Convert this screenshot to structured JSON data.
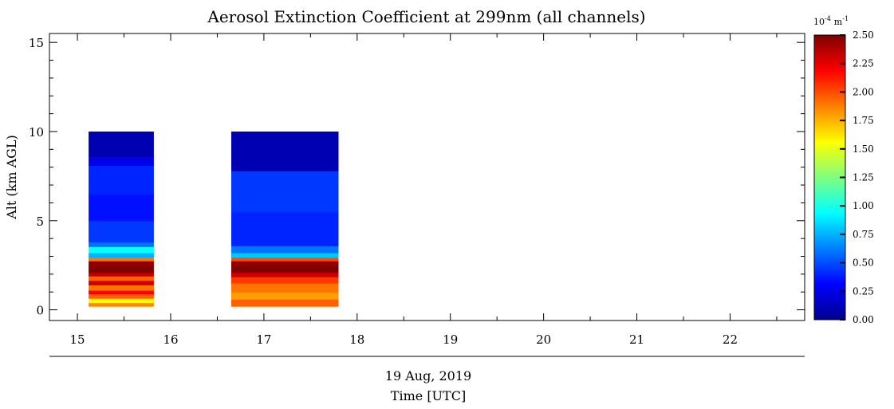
{
  "chart_data": {
    "type": "heatmap",
    "title": "Aerosol Extinction Coefficient at 299nm (all channels)",
    "ylabel": "Alt (km AGL)",
    "xlabel_date": "19 Aug, 2019",
    "xlabel": "Time [UTC]",
    "xlim": [
      14.7,
      22.8
    ],
    "ylim": [
      -0.6,
      15.5
    ],
    "xticks": [
      15,
      16,
      17,
      18,
      19,
      20,
      21,
      22
    ],
    "xtick_labels": [
      "15",
      "16",
      "17",
      "18",
      "19",
      "20",
      "21",
      "22"
    ],
    "yticks": [
      0,
      5,
      10,
      15
    ],
    "ytick_labels": [
      "0",
      "5",
      "10",
      "15"
    ],
    "colorbar": {
      "unit_base": "10",
      "unit_exp": "-4",
      "unit_m": "m",
      "unit_m_exp": "-1",
      "colormap": "jet",
      "range": [
        0.0,
        2.5
      ],
      "ticks": [
        0.0,
        0.25,
        0.5,
        0.75,
        1.0,
        1.25,
        1.5,
        1.75,
        2.0,
        2.25,
        2.5
      ],
      "tick_labels": [
        "0.00",
        "0.25",
        "0.50",
        "0.75",
        "1.00",
        "1.25",
        "1.50",
        "1.75",
        "2.00",
        "2.25",
        "2.50"
      ]
    },
    "segments": [
      {
        "time_start": 15.12,
        "time_end": 15.82,
        "profile": [
          {
            "alt_bottom": 0.2,
            "alt_top": 0.4,
            "value": 1.85
          },
          {
            "alt_bottom": 0.4,
            "alt_top": 0.65,
            "value": 1.55
          },
          {
            "alt_bottom": 0.65,
            "alt_top": 0.9,
            "value": 1.95
          },
          {
            "alt_bottom": 0.9,
            "alt_top": 1.1,
            "value": 2.2
          },
          {
            "alt_bottom": 1.1,
            "alt_top": 1.4,
            "value": 1.9
          },
          {
            "alt_bottom": 1.4,
            "alt_top": 1.65,
            "value": 2.3
          },
          {
            "alt_bottom": 1.65,
            "alt_top": 1.9,
            "value": 1.95
          },
          {
            "alt_bottom": 1.9,
            "alt_top": 2.1,
            "value": 2.35
          },
          {
            "alt_bottom": 2.1,
            "alt_top": 2.45,
            "value": 2.5
          },
          {
            "alt_bottom": 2.45,
            "alt_top": 2.75,
            "value": 2.45
          },
          {
            "alt_bottom": 2.75,
            "alt_top": 2.95,
            "value": 1.9
          },
          {
            "alt_bottom": 2.95,
            "alt_top": 3.2,
            "value": 0.75
          },
          {
            "alt_bottom": 3.2,
            "alt_top": 3.55,
            "value": 0.95
          },
          {
            "alt_bottom": 3.55,
            "alt_top": 3.8,
            "value": 0.6
          },
          {
            "alt_bottom": 3.8,
            "alt_top": 5.0,
            "value": 0.45
          },
          {
            "alt_bottom": 5.0,
            "alt_top": 6.5,
            "value": 0.35
          },
          {
            "alt_bottom": 6.5,
            "alt_top": 8.1,
            "value": 0.4
          },
          {
            "alt_bottom": 8.1,
            "alt_top": 8.6,
            "value": 0.25
          },
          {
            "alt_bottom": 8.6,
            "alt_top": 10.0,
            "value": 0.1
          }
        ]
      },
      {
        "time_start": 16.65,
        "time_end": 17.8,
        "profile": [
          {
            "alt_bottom": 0.2,
            "alt_top": 0.6,
            "value": 1.95
          },
          {
            "alt_bottom": 0.6,
            "alt_top": 1.0,
            "value": 1.8
          },
          {
            "alt_bottom": 1.0,
            "alt_top": 1.5,
            "value": 1.9
          },
          {
            "alt_bottom": 1.5,
            "alt_top": 1.85,
            "value": 2.05
          },
          {
            "alt_bottom": 1.85,
            "alt_top": 2.1,
            "value": 2.3
          },
          {
            "alt_bottom": 2.1,
            "alt_top": 2.5,
            "value": 2.5
          },
          {
            "alt_bottom": 2.5,
            "alt_top": 2.75,
            "value": 2.45
          },
          {
            "alt_bottom": 2.75,
            "alt_top": 2.95,
            "value": 2.0
          },
          {
            "alt_bottom": 2.95,
            "alt_top": 3.2,
            "value": 0.8
          },
          {
            "alt_bottom": 3.2,
            "alt_top": 3.6,
            "value": 0.6
          },
          {
            "alt_bottom": 3.6,
            "alt_top": 5.5,
            "value": 0.4
          },
          {
            "alt_bottom": 5.5,
            "alt_top": 7.8,
            "value": 0.45
          },
          {
            "alt_bottom": 7.8,
            "alt_top": 10.0,
            "value": 0.1
          }
        ]
      }
    ]
  }
}
